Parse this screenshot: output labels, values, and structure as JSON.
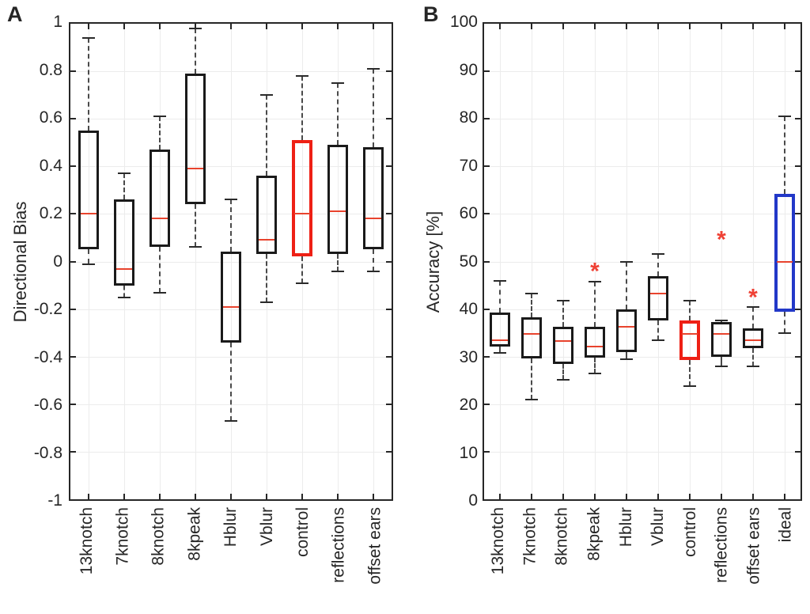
{
  "figure": {
    "background": "#ffffff"
  },
  "colors": {
    "box_black": "#1a1a1a",
    "box_red": "#ee2015",
    "box_blue": "#2238c8",
    "median_red": "#e8432d",
    "outlier_red": "#ef4135",
    "grid": "#ececec",
    "whisker": "#4a4a4a",
    "axis": "#262626"
  },
  "chart_data": [
    {
      "type": "boxplot",
      "panel_label": "A",
      "ylabel": "Directional Bias",
      "ylim": [
        -1,
        1
      ],
      "yticks": [
        1,
        0.8,
        0.6,
        0.4,
        0.2,
        0,
        -0.2,
        -0.4,
        -0.6,
        -0.8,
        -1
      ],
      "grid": true,
      "legend": "none",
      "marker": "*",
      "categories": [
        "13knotch",
        "7knotch",
        "8knotch",
        "8kpeak",
        "Hblur",
        "Vblur",
        "control",
        "reflections",
        "offset ears"
      ],
      "boxes": [
        {
          "category": "13knotch",
          "whisker_low": -0.01,
          "q1": 0.05,
          "median": 0.2,
          "q3": 0.55,
          "whisker_high": 0.94,
          "color": "black",
          "outliers": []
        },
        {
          "category": "7knotch",
          "whisker_low": -0.15,
          "q1": -0.1,
          "median": -0.03,
          "q3": 0.26,
          "whisker_high": 0.37,
          "color": "black",
          "outliers": []
        },
        {
          "category": "8knotch",
          "whisker_low": -0.13,
          "q1": 0.06,
          "median": 0.18,
          "q3": 0.47,
          "whisker_high": 0.61,
          "color": "black",
          "outliers": []
        },
        {
          "category": "8kpeak",
          "whisker_low": 0.06,
          "q1": 0.24,
          "median": 0.39,
          "q3": 0.79,
          "whisker_high": 0.98,
          "color": "black",
          "outliers": []
        },
        {
          "category": "Hblur",
          "whisker_low": -0.67,
          "q1": -0.34,
          "median": -0.19,
          "q3": 0.04,
          "whisker_high": 0.26,
          "color": "black",
          "outliers": []
        },
        {
          "category": "Vblur",
          "whisker_low": -0.17,
          "q1": 0.03,
          "median": 0.09,
          "q3": 0.36,
          "whisker_high": 0.7,
          "color": "black",
          "outliers": []
        },
        {
          "category": "control",
          "whisker_low": -0.09,
          "q1": 0.02,
          "median": 0.2,
          "q3": 0.51,
          "whisker_high": 0.78,
          "color": "red",
          "outliers": []
        },
        {
          "category": "reflections",
          "whisker_low": -0.04,
          "q1": 0.03,
          "median": 0.21,
          "q3": 0.49,
          "whisker_high": 0.75,
          "color": "black",
          "outliers": []
        },
        {
          "category": "offset ears",
          "whisker_low": -0.04,
          "q1": 0.05,
          "median": 0.18,
          "q3": 0.48,
          "whisker_high": 0.81,
          "color": "black",
          "outliers": []
        }
      ]
    },
    {
      "type": "boxplot",
      "panel_label": "B",
      "ylabel": "Accuracy [%]",
      "ylim": [
        0,
        100
      ],
      "yticks": [
        100,
        90,
        80,
        70,
        60,
        50,
        40,
        30,
        20,
        10,
        0
      ],
      "grid": true,
      "legend": "none",
      "marker": "*",
      "categories": [
        "13knotch",
        "7knotch",
        "8knotch",
        "8kpeak",
        "Hblur",
        "Vblur",
        "control",
        "reflections",
        "offset ears",
        "ideal"
      ],
      "boxes": [
        {
          "category": "13knotch",
          "whisker_low": 30.8,
          "q1": 32.1,
          "median": 33.5,
          "q3": 39.3,
          "whisker_high": 46.0,
          "color": "black",
          "outliers": []
        },
        {
          "category": "7knotch",
          "whisker_low": 20.9,
          "q1": 29.6,
          "median": 34.8,
          "q3": 38.2,
          "whisker_high": 43.2,
          "color": "black",
          "outliers": []
        },
        {
          "category": "8knotch",
          "whisker_low": 25.1,
          "q1": 28.5,
          "median": 33.3,
          "q3": 36.2,
          "whisker_high": 41.8,
          "color": "black",
          "outliers": []
        },
        {
          "category": "8kpeak",
          "whisker_low": 26.5,
          "q1": 29.8,
          "median": 32.1,
          "q3": 36.2,
          "whisker_high": 45.8,
          "color": "black",
          "outliers": [
            47.5
          ]
        },
        {
          "category": "Hblur",
          "whisker_low": 29.4,
          "q1": 31.0,
          "median": 36.2,
          "q3": 40.0,
          "whisker_high": 50.0,
          "color": "black",
          "outliers": []
        },
        {
          "category": "Vblur",
          "whisker_low": 33.5,
          "q1": 37.6,
          "median": 43.2,
          "q3": 47.0,
          "whisker_high": 51.5,
          "color": "black",
          "outliers": []
        },
        {
          "category": "control",
          "whisker_low": 23.8,
          "q1": 29.3,
          "median": 34.7,
          "q3": 37.6,
          "whisker_high": 41.8,
          "color": "red",
          "outliers": []
        },
        {
          "category": "reflections",
          "whisker_low": 27.9,
          "q1": 30.0,
          "median": 34.8,
          "q3": 37.3,
          "whisker_high": 37.6,
          "color": "black",
          "outliers": [
            54.0
          ]
        },
        {
          "category": "offset ears",
          "whisker_low": 28.0,
          "q1": 31.8,
          "median": 33.5,
          "q3": 35.9,
          "whisker_high": 40.5,
          "color": "black",
          "outliers": [
            42.0
          ]
        },
        {
          "category": "ideal",
          "whisker_low": 34.9,
          "q1": 39.4,
          "median": 50.0,
          "q3": 64.3,
          "whisker_high": 80.5,
          "color": "blue",
          "outliers": []
        }
      ]
    }
  ]
}
